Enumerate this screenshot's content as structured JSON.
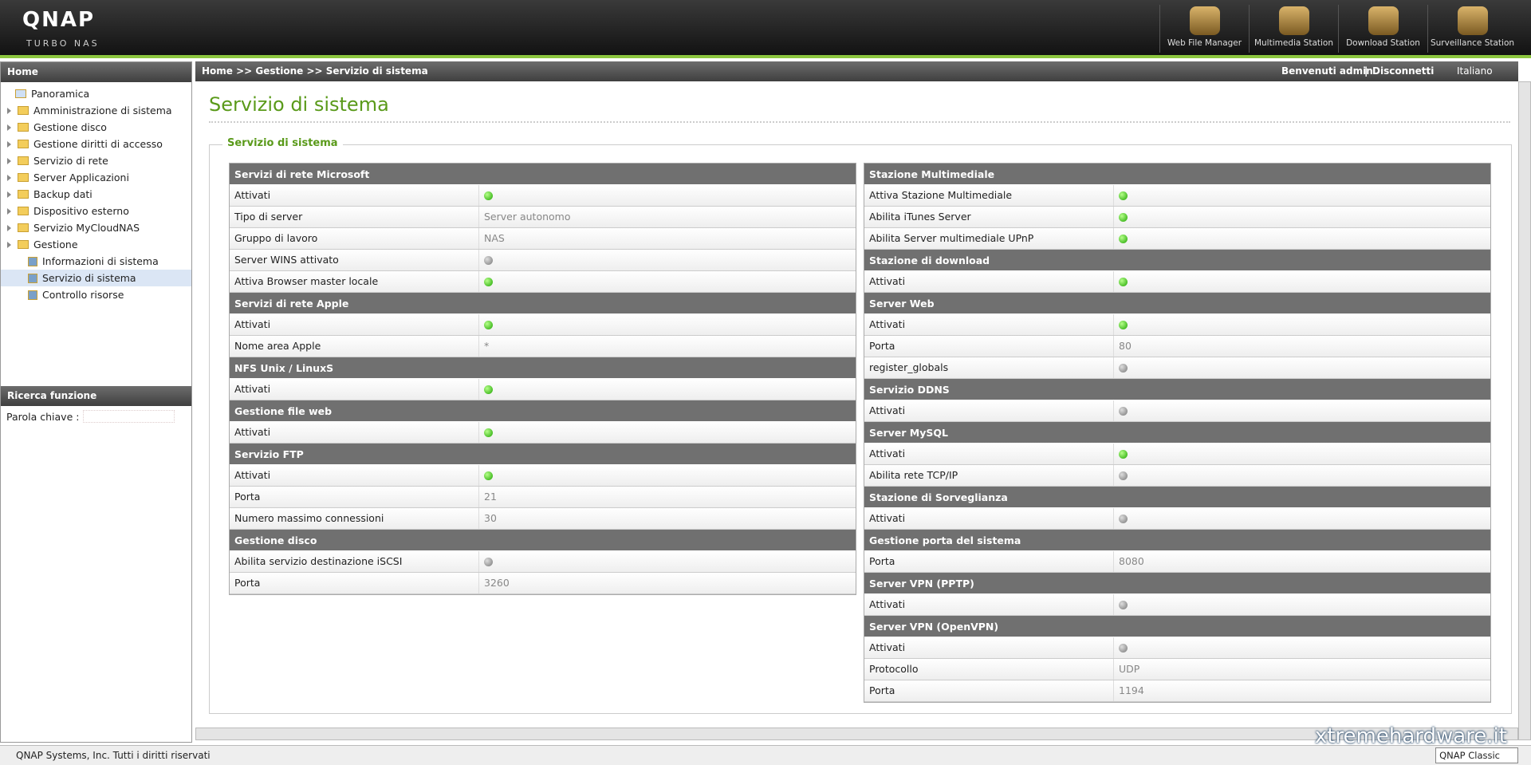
{
  "header": {
    "brand": "QNAP",
    "subbrand": "TURBO NAS",
    "apps": [
      "Web File Manager",
      "Multimedia Station",
      "Download Station",
      "Surveillance Station"
    ]
  },
  "sidebar": {
    "title": "Home",
    "items": [
      {
        "label": "Panoramica",
        "type": "page"
      },
      {
        "label": "Amministrazione di sistema",
        "type": "folder"
      },
      {
        "label": "Gestione disco",
        "type": "folder"
      },
      {
        "label": "Gestione diritti di accesso",
        "type": "folder"
      },
      {
        "label": "Servizio di rete",
        "type": "folder"
      },
      {
        "label": "Server Applicazioni",
        "type": "folder"
      },
      {
        "label": "Backup dati",
        "type": "folder"
      },
      {
        "label": "Dispositivo esterno",
        "type": "folder"
      },
      {
        "label": "Servizio MyCloudNAS",
        "type": "folder"
      },
      {
        "label": "Gestione",
        "type": "open-folder",
        "children": [
          {
            "label": "Informazioni di sistema"
          },
          {
            "label": "Servizio di sistema",
            "selected": true
          },
          {
            "label": "Controllo risorse"
          }
        ]
      }
    ],
    "search_title": "Ricerca funzione",
    "search_label": "Parola chiave :"
  },
  "topbar": {
    "breadcrumb": "Home >> Gestione >> Servizio di sistema",
    "welcome": "Benvenuti admin",
    "logout": "Disconnetti",
    "language": "Italiano"
  },
  "page": {
    "title": "Servizio di sistema",
    "panel_title": "Servizio di sistema",
    "columns": [
      [
        {
          "title": "Servizi di rete Microsoft",
          "rows": [
            {
              "label": "Attivati",
              "on": true
            },
            {
              "label": "Tipo di server",
              "value": "Server autonomo"
            },
            {
              "label": "Gruppo di lavoro",
              "value": "NAS"
            },
            {
              "label": "Server WINS attivato",
              "on": false
            },
            {
              "label": "Attiva Browser master locale",
              "on": true
            }
          ]
        },
        {
          "title": "Servizi di rete Apple",
          "rows": [
            {
              "label": "Attivati",
              "on": true
            },
            {
              "label": "Nome area Apple",
              "value": "*"
            }
          ]
        },
        {
          "title": "NFS Unix / LinuxS",
          "rows": [
            {
              "label": "Attivati",
              "on": true
            }
          ]
        },
        {
          "title": "Gestione file web",
          "rows": [
            {
              "label": "Attivati",
              "on": true
            }
          ]
        },
        {
          "title": "Servizio FTP",
          "rows": [
            {
              "label": "Attivati",
              "on": true
            },
            {
              "label": "Porta",
              "value": "21"
            },
            {
              "label": "Numero massimo connessioni",
              "value": "30"
            }
          ]
        },
        {
          "title": "Gestione disco",
          "rows": [
            {
              "label": "Abilita servizio destinazione iSCSI",
              "on": false
            },
            {
              "label": "Porta",
              "value": "3260"
            }
          ]
        }
      ],
      [
        {
          "title": "Stazione Multimediale",
          "rows": [
            {
              "label": "Attiva Stazione Multimediale",
              "on": true
            },
            {
              "label": "Abilita iTunes Server",
              "on": true
            },
            {
              "label": "Abilita Server multimediale UPnP",
              "on": true
            }
          ]
        },
        {
          "title": "Stazione di download",
          "rows": [
            {
              "label": "Attivati",
              "on": true
            }
          ]
        },
        {
          "title": "Server Web",
          "rows": [
            {
              "label": "Attivati",
              "on": true
            },
            {
              "label": "Porta",
              "value": "80"
            },
            {
              "label": "register_globals",
              "on": false
            }
          ]
        },
        {
          "title": "Servizio DDNS",
          "rows": [
            {
              "label": "Attivati",
              "on": false
            }
          ]
        },
        {
          "title": "Server MySQL",
          "rows": [
            {
              "label": "Attivati",
              "on": true
            },
            {
              "label": "Abilita rete TCP/IP",
              "on": false
            }
          ]
        },
        {
          "title": "Stazione di Sorveglianza",
          "rows": [
            {
              "label": "Attivati",
              "on": false
            }
          ]
        },
        {
          "title": "Gestione porta del sistema",
          "rows": [
            {
              "label": "Porta",
              "value": "8080"
            }
          ]
        },
        {
          "title": "Server VPN (PPTP)",
          "rows": [
            {
              "label": "Attivati",
              "on": false
            }
          ]
        },
        {
          "title": "Server VPN (OpenVPN)",
          "rows": [
            {
              "label": "Attivati",
              "on": false
            },
            {
              "label": "Protocollo",
              "value": "UDP"
            },
            {
              "label": "Porta",
              "value": "1194"
            }
          ]
        }
      ]
    ]
  },
  "footer": {
    "copyright": "QNAP Systems, Inc. Tutti i diritti riservati",
    "theme": "QNAP Classic",
    "watermark": "xtremehardware.it"
  }
}
